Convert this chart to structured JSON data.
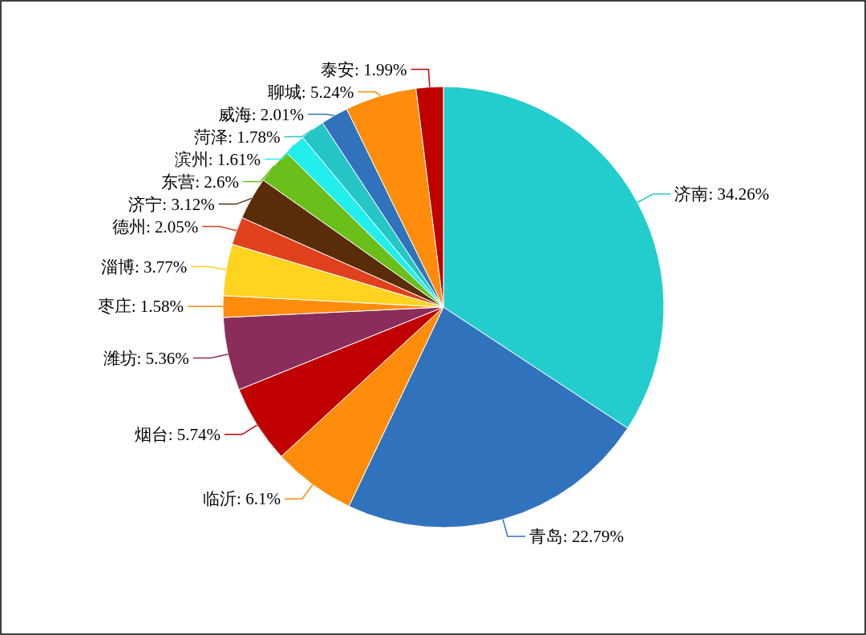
{
  "chart_data": {
    "type": "pie",
    "categories": [
      "济南",
      "青岛",
      "临沂",
      "烟台",
      "潍坊",
      "枣庄",
      "淄博",
      "德州",
      "济宁",
      "东营",
      "滨州",
      "菏泽",
      "威海",
      "聊城",
      "泰安"
    ],
    "values": [
      34.26,
      22.79,
      6.1,
      5.74,
      5.36,
      1.58,
      3.77,
      2.05,
      3.12,
      2.6,
      1.61,
      1.78,
      2.01,
      5.24,
      1.99
    ],
    "colors": [
      "#23cdcd",
      "#3172bc",
      "#ff8c0a",
      "#c00000",
      "#8b2d5b",
      "#ff8c0a",
      "#ffd31f",
      "#e0401b",
      "#5a2d0a",
      "#6abf1a",
      "#22eeee",
      "#26c6c6",
      "#3172bc",
      "#ff8c0a",
      "#c00000"
    ],
    "value_labels": [
      "34.26%",
      "22.79%",
      "6.1%",
      "5.74%",
      "5.36%",
      "1.58%",
      "3.77%",
      "2.05%",
      "3.12%",
      "2.6%",
      "1.61%",
      "1.78%",
      "2.01%",
      "5.24%",
      "1.99%"
    ]
  }
}
